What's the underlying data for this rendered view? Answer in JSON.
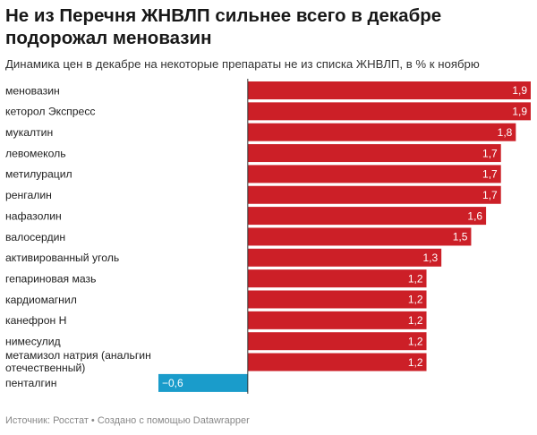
{
  "title": "Не из Перечня ЖНВЛП сильнее всего в декабре подорожал меновазин",
  "subtitle": "Динамика цен в декабре на некоторые препараты не из списка ЖНВЛП, в % к ноябрю",
  "footer": "Источник: Росстат • Создано с помощью Datawrapper",
  "colors": {
    "positive": "#cc1f27",
    "negative": "#1a9ccb",
    "zero_line": "#333333"
  },
  "chart_data": {
    "type": "bar",
    "orientation": "horizontal",
    "categories": [
      "меновазин",
      "кеторол Экспресс",
      "мукалтин",
      "левомеколь",
      "метилурацил",
      "ренгалин",
      "нафазолин",
      "валосердин",
      "активированный уголь",
      "гепариновая мазь",
      "кардиомагнил",
      "канефрон Н",
      "нимесулид",
      "метамизол натрия (анальгин отечественный)",
      "пенталгин"
    ],
    "category_lines": [
      [
        "меновазин"
      ],
      [
        "кеторол Экспресс"
      ],
      [
        "мукалтин"
      ],
      [
        "левомеколь"
      ],
      [
        "метилурацил"
      ],
      [
        "ренгалин"
      ],
      [
        "нафазолин"
      ],
      [
        "валосердин"
      ],
      [
        "активированный уголь"
      ],
      [
        "гепариновая мазь"
      ],
      [
        "кардиомагнил"
      ],
      [
        "канефрон Н"
      ],
      [
        "нимесулид"
      ],
      [
        "метамизол натрия (анальгин",
        "отечественный)"
      ],
      [
        "пенталгин"
      ]
    ],
    "values": [
      1.9,
      1.9,
      1.8,
      1.7,
      1.7,
      1.7,
      1.6,
      1.5,
      1.3,
      1.2,
      1.2,
      1.2,
      1.2,
      1.2,
      -0.6
    ],
    "value_labels": [
      "1,9",
      "1,9",
      "1,8",
      "1,7",
      "1,7",
      "1,7",
      "1,6",
      "1,5",
      "1,3",
      "1,2",
      "1,2",
      "1,2",
      "1,2",
      "1,2",
      "−0,6"
    ],
    "xlim": [
      -0.6,
      1.9
    ],
    "grid": false
  }
}
